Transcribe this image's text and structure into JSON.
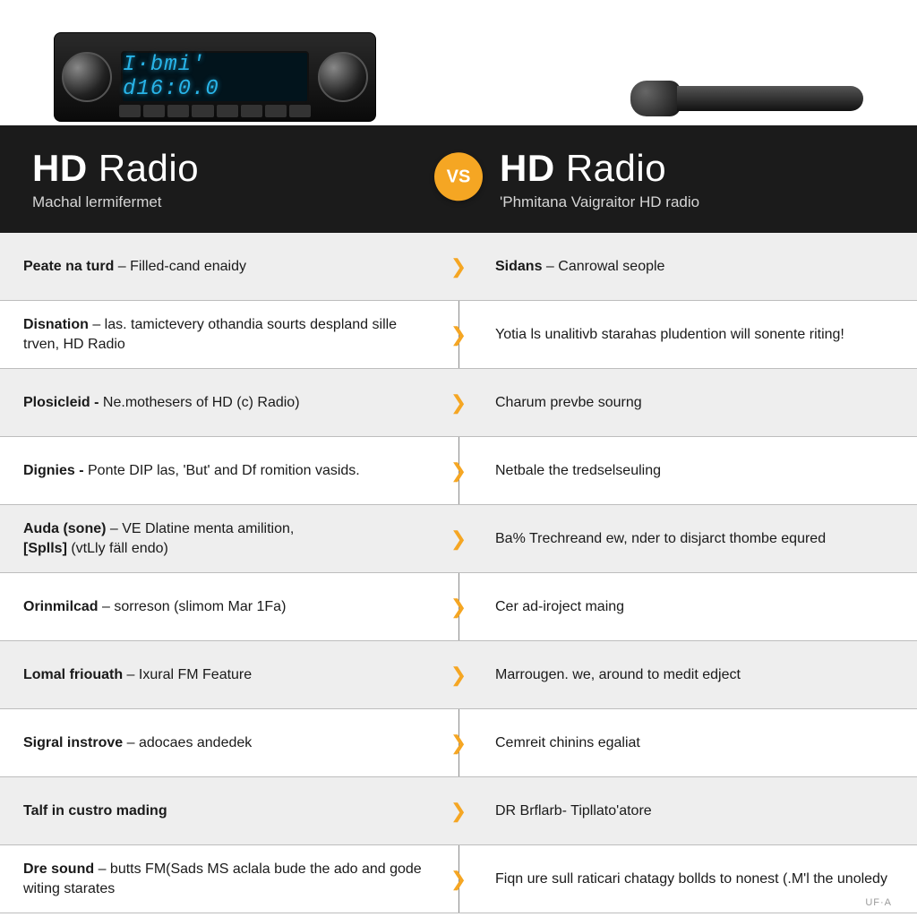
{
  "colors": {
    "band_bg": "#1b1b1b",
    "band_text": "#ffffff",
    "subtitle_text": "#d6d6d6",
    "vs_bg": "#f5a623",
    "row_alt_bg": "#eeeeee",
    "divider": "#8a8a8a",
    "row_border": "#bdbdbd",
    "body_text": "#1a1a1a",
    "lcd_text": "#28b4e8"
  },
  "product_left_lcd": "I·bmi' d16:0.0",
  "header": {
    "left": {
      "title_bold": "HD",
      "title_rest": " Radio",
      "subtitle": "Machal lermifermet"
    },
    "vs": "VS",
    "right": {
      "title_bold": "HD",
      "title_rest": " Radio",
      "subtitle": "'Phmitana Vaigraitor HD radio"
    }
  },
  "rows": [
    {
      "alt": true,
      "left": {
        "lead": "Peate na turd",
        "rest": " – Filled-cand enaidy"
      },
      "right": {
        "lead": "Sidans",
        "rest": " – Canrowal seople"
      }
    },
    {
      "alt": false,
      "left": {
        "lead": "Disnation",
        "rest": " – las. tamictevery othandia sourts despland sille trven, HD Radio"
      },
      "right": {
        "lead": "",
        "rest": "Yotia ls unalitivb starahas pludention will sonente riting!"
      }
    },
    {
      "alt": true,
      "left": {
        "lead": "Plosicleid -",
        "rest": "  Ne.mothesers of HD (c) Radio)"
      },
      "right": {
        "lead": "",
        "rest": "Charum prevbe sourng"
      }
    },
    {
      "alt": false,
      "left": {
        "lead": "Dignies -",
        "rest": "  Ponte DIP las, 'But' and Df romition vasids."
      },
      "right": {
        "lead": "",
        "rest": "Netbale the tredselseuling"
      }
    },
    {
      "alt": true,
      "left": {
        "lead": "Auda (sone)",
        "rest": " – VE Dlatine menta amilition,",
        "lead2": "[Splls]",
        "rest2": "     (vtLly fäll endo)"
      },
      "right": {
        "lead": "",
        "rest": "Ba% Trechreand ew, nder to disjarct thombe equred"
      }
    },
    {
      "alt": false,
      "left": {
        "lead": "Orinmilcad",
        "rest": " – sorreson (slimom Mar 1Fa)"
      },
      "right": {
        "lead": "",
        "rest": "Cer ad-iroject maing"
      }
    },
    {
      "alt": true,
      "left": {
        "lead": "Lomal friouath",
        "rest": " – Ixural FM Feature"
      },
      "right": {
        "lead": "",
        "rest": "Marrougen. we, around to medit edject"
      }
    },
    {
      "alt": false,
      "left": {
        "lead": "Sigral instrove",
        "rest": " – adocaes andedek"
      },
      "right": {
        "lead": "",
        "rest": "Cemreit chinins egaliat"
      }
    },
    {
      "alt": true,
      "left": {
        "lead": "Talf in custro mading",
        "rest": ""
      },
      "right": {
        "lead": "",
        "rest": "DR Brflarb- Tipllato'atore"
      }
    },
    {
      "alt": false,
      "left": {
        "lead": "Dre sound",
        "rest": " – butts FM(Sads MS aclala bude the ado and gode witing starates"
      },
      "right": {
        "lead": "",
        "rest": "Fiqn ure sull raticari chatagy bollds to nonest (.M'l the unoledy"
      }
    }
  ],
  "footer_tag": "UF·A"
}
